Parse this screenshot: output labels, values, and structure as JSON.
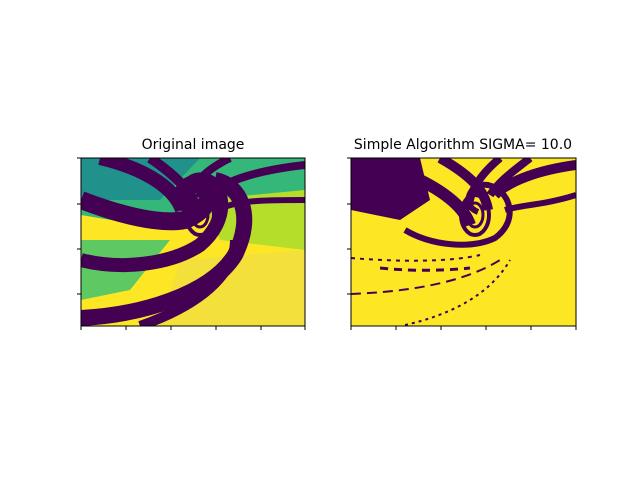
{
  "chart_data": [
    {
      "type": "heatmap",
      "title": "Original image",
      "colormap": "viridis",
      "x_ticks": 6,
      "y_ticks": 4,
      "tick_labels_shown": false,
      "colors": [
        "#440154",
        "#3b528b",
        "#21918c",
        "#35b779",
        "#5ec962",
        "#b5de2b",
        "#fde725"
      ]
    },
    {
      "type": "heatmap",
      "title": "Simple Algorithm SIGMA= 10.0",
      "colormap": "binary (viridis endpoints)",
      "x_ticks": 6,
      "y_ticks": 4,
      "tick_labels_shown": false,
      "colors": [
        "#440154",
        "#fde725"
      ]
    }
  ]
}
